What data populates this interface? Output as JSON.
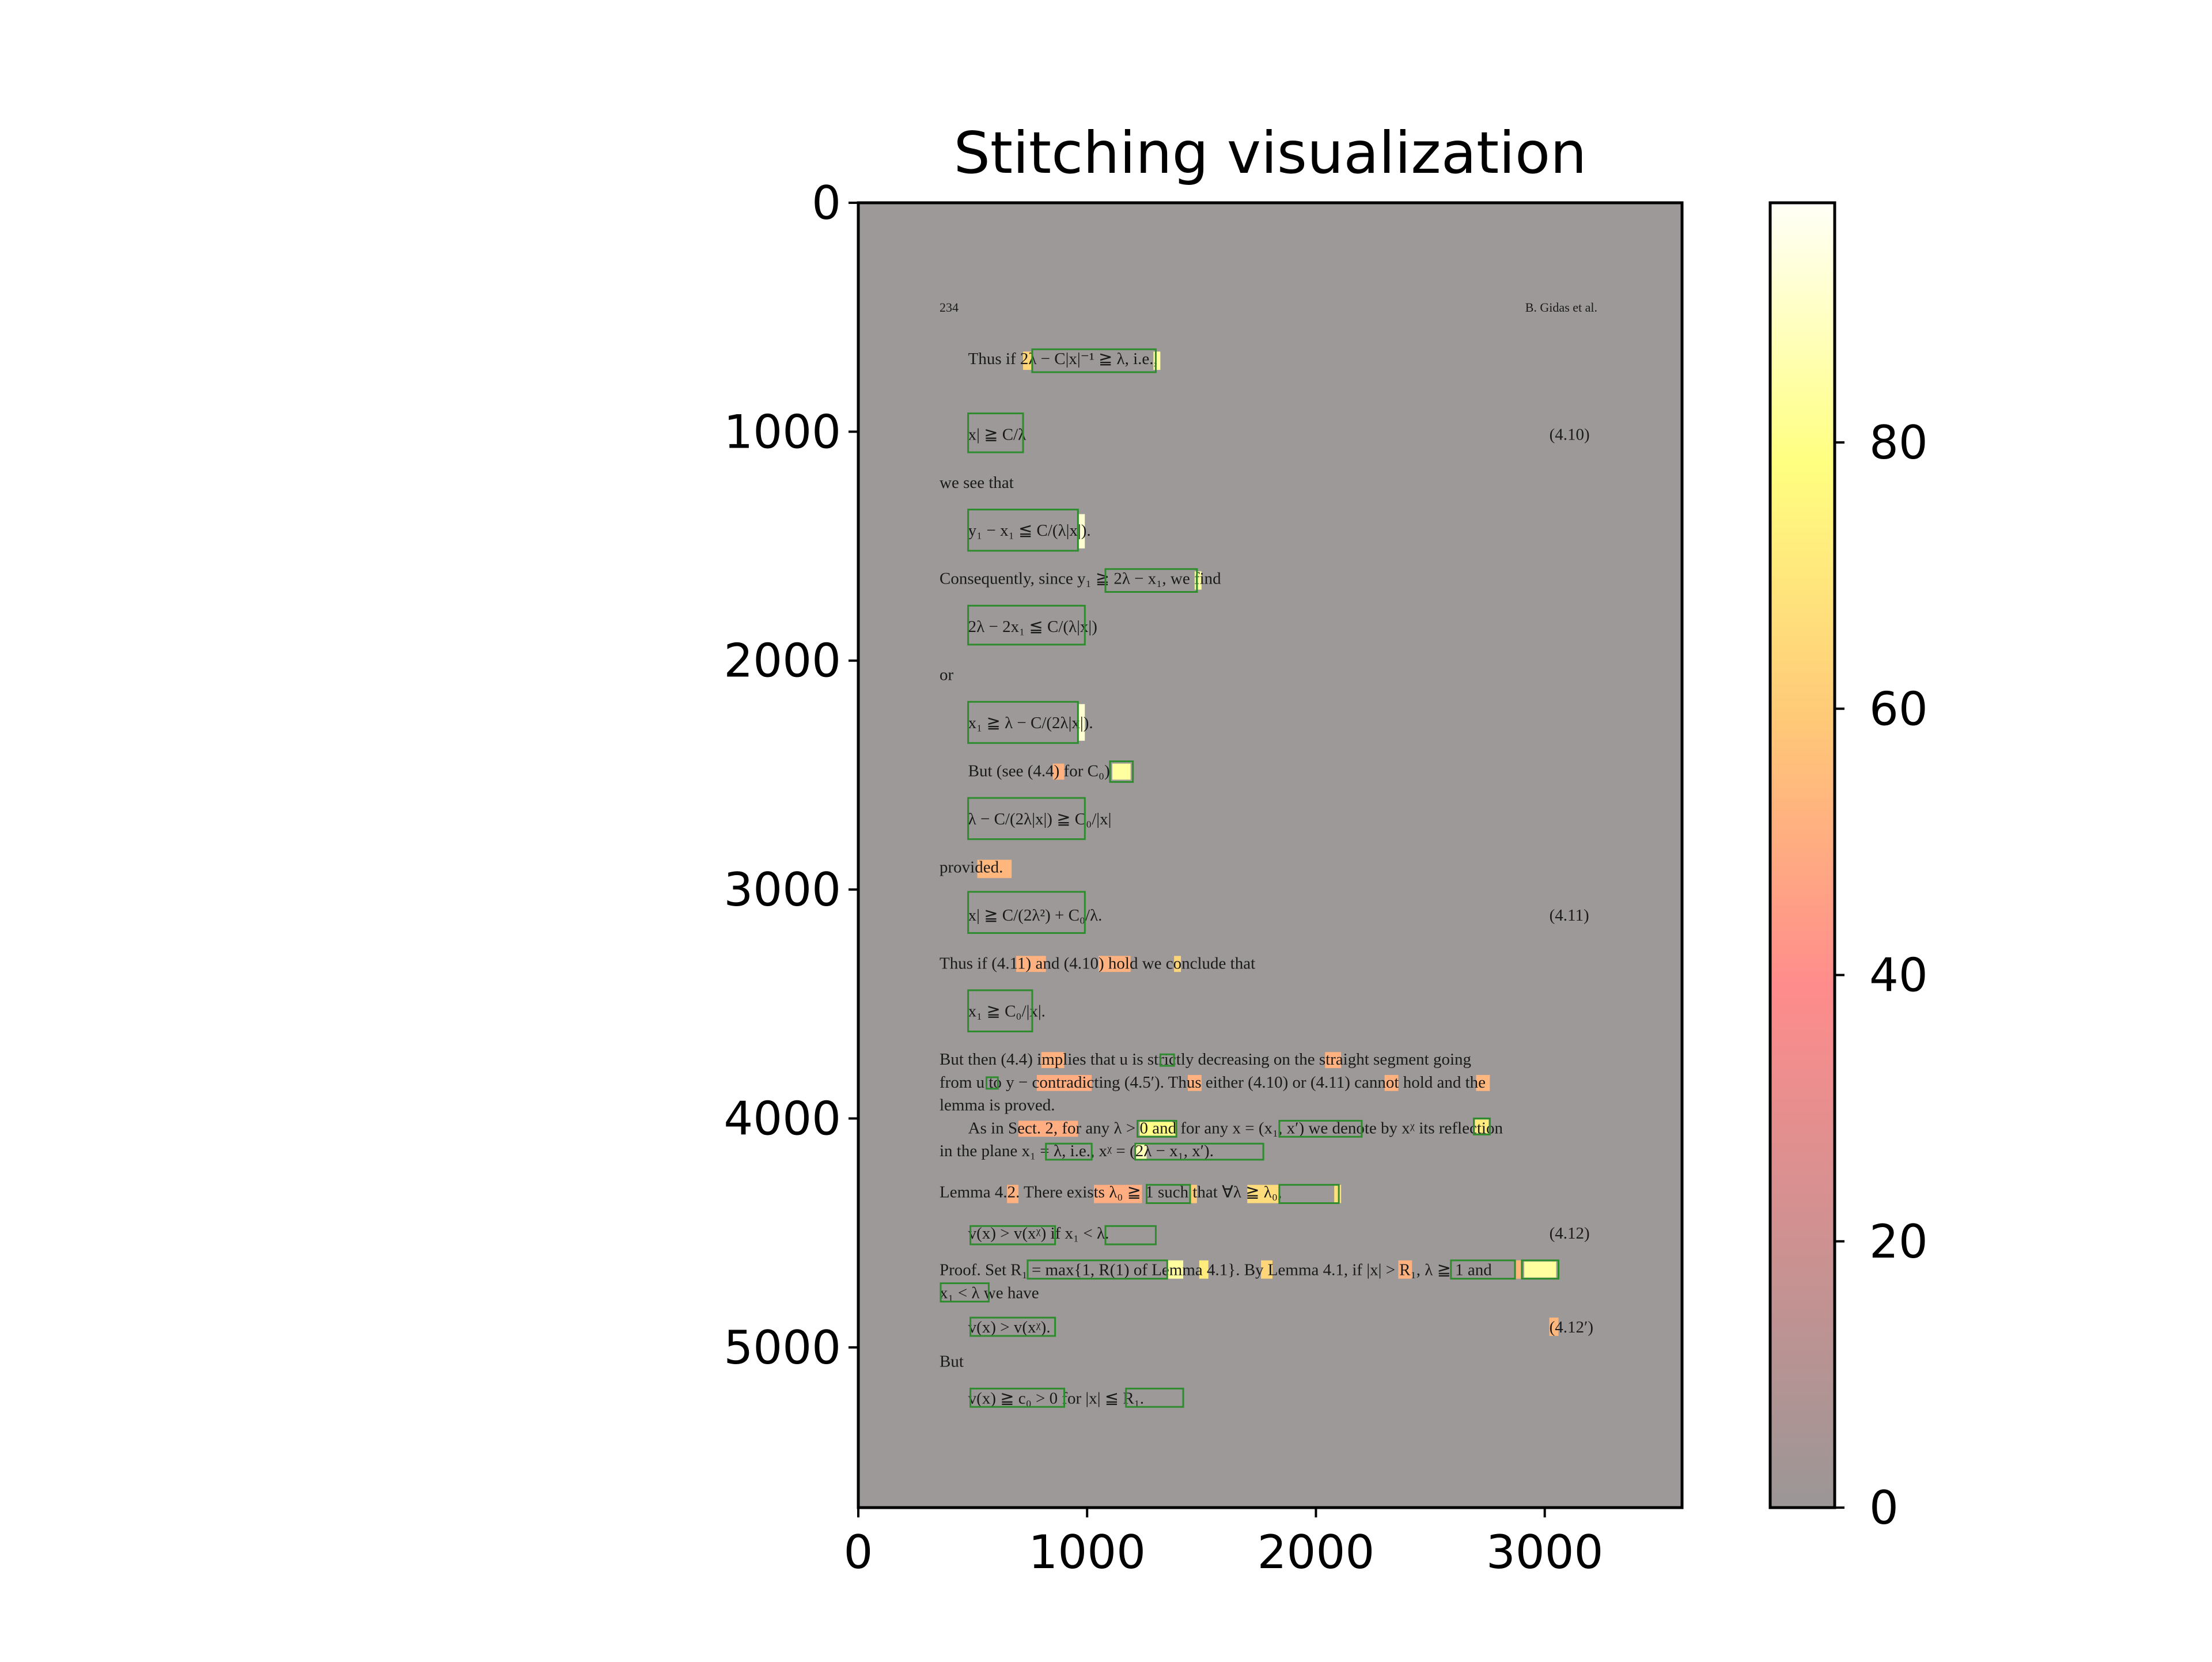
{
  "chart_data": {
    "type": "heatmap",
    "title": "Stitching visualization",
    "xlabel": "",
    "ylabel": "",
    "xlim": [
      0,
      3600
    ],
    "ylim": [
      5700,
      0
    ],
    "x_ticks": [
      0,
      1000,
      2000,
      3000
    ],
    "y_ticks": [
      0,
      1000,
      2000,
      3000,
      4000,
      5000
    ],
    "colorbar": {
      "range": [
        0,
        98
      ],
      "ticks": [
        0,
        20,
        40,
        60,
        80
      ],
      "colormap": [
        "#9b9696",
        "#ff8c8c",
        "#ffc878",
        "#ffff80",
        "#fffff8"
      ]
    },
    "background_color": "#9c9998",
    "box_color": "#2e8b2e",
    "document": {
      "header_left": "234",
      "header_right": "B. Gidas et al.",
      "lines": [
        {
          "text": "Thus if 2λ − C|x|⁻¹ ≧ λ, i.e.,",
          "y": 680,
          "x": 480
        },
        {
          "text": "x| ≧ C/λ",
          "y": 1010,
          "x": 480
        },
        {
          "text": "(4.10)",
          "y": 1010,
          "x": 3020
        },
        {
          "text": "we see that",
          "y": 1220,
          "x": 355
        },
        {
          "text": "y₁ − x₁ ≦ C/(λ|x|).",
          "y": 1430,
          "x": 480
        },
        {
          "text": "Consequently, since y₁ ≧ 2λ − x₁, we find",
          "y": 1640,
          "x": 355
        },
        {
          "text": "2λ − 2x₁ ≦ C/(λ|x|)",
          "y": 1850,
          "x": 480
        },
        {
          "text": "or",
          "y": 2060,
          "x": 355
        },
        {
          "text": "x₁ ≧ λ − C/(2λ|x|).",
          "y": 2270,
          "x": 480
        },
        {
          "text": "But (see (4.4) for C₀)",
          "y": 2480,
          "x": 480
        },
        {
          "text": "λ − C/(2λ|x|) ≧ C₀/|x|",
          "y": 2690,
          "x": 480
        },
        {
          "text": "provided.",
          "y": 2900,
          "x": 355
        },
        {
          "text": "x| ≧ C/(2λ²) + C₀/λ.",
          "y": 3110,
          "x": 480
        },
        {
          "text": "(4.11)",
          "y": 3110,
          "x": 3020
        },
        {
          "text": "Thus if (4.11) and (4.10) hold we conclude that",
          "y": 3320,
          "x": 355
        },
        {
          "text": "x₁ ≧ C₀/|x|.",
          "y": 3530,
          "x": 480
        },
        {
          "text": "But then (4.4) implies that u is strictly decreasing on the straight segment going",
          "y": 3740,
          "x": 355
        },
        {
          "text": "from u to y − contradicting (4.5′). Thus either (4.10) or (4.11) cannot hold and the",
          "y": 3840,
          "x": 355
        },
        {
          "text": "lemma is proved.",
          "y": 3940,
          "x": 355
        },
        {
          "text": "As in Sect. 2, for any λ > 0 and for any x = (x₁, x′) we denote by xᵡ its reflection",
          "y": 4040,
          "x": 480
        },
        {
          "text": "in the plane x₁ = λ, i.e., xᵡ = (2λ − x₁, x′).",
          "y": 4140,
          "x": 355
        },
        {
          "text": "Lemma 4.2. There exists λ₀ ≧ 1 such that ∀λ ≧ λ₀,",
          "y": 4320,
          "x": 355
        },
        {
          "text": "v(x) > v(xᵡ)    if    x₁ < λ.",
          "y": 4500,
          "x": 480
        },
        {
          "text": "(4.12)",
          "y": 4500,
          "x": 3020
        },
        {
          "text": "Proof. Set R₁ = max{1, R(1) of Lemma 4.1}. By Lemma 4.1, if |x| > R₁, λ ≧ 1 and",
          "y": 4660,
          "x": 355
        },
        {
          "text": "x₁ < λ we have",
          "y": 4760,
          "x": 355
        },
        {
          "text": "v(x) > v(xᵡ).",
          "y": 4910,
          "x": 480
        },
        {
          "text": "(4.12′)",
          "y": 4910,
          "x": 3020
        },
        {
          "text": "But",
          "y": 5060,
          "x": 355
        },
        {
          "text": "v(x) ≧ c₀ > 0    for    |x| ≦ R₁.",
          "y": 5220,
          "x": 480
        }
      ],
      "boxes": [
        {
          "x": [
            760,
            1300
          ],
          "y": [
            640,
            740
          ]
        },
        {
          "x": [
            480,
            720
          ],
          "y": [
            920,
            1090
          ]
        },
        {
          "x": [
            480,
            960
          ],
          "y": [
            1340,
            1520
          ]
        },
        {
          "x": [
            1080,
            1480
          ],
          "y": [
            1600,
            1700
          ]
        },
        {
          "x": [
            480,
            990
          ],
          "y": [
            1760,
            1930
          ]
        },
        {
          "x": [
            480,
            960
          ],
          "y": [
            2180,
            2360
          ]
        },
        {
          "x": [
            1100,
            1200
          ],
          "y": [
            2440,
            2530
          ]
        },
        {
          "x": [
            480,
            990
          ],
          "y": [
            2600,
            2780
          ]
        },
        {
          "x": [
            480,
            990
          ],
          "y": [
            3010,
            3190
          ]
        },
        {
          "x": [
            480,
            760
          ],
          "y": [
            3440,
            3620
          ]
        },
        {
          "x": [
            1320,
            1380
          ],
          "y": [
            3720,
            3770
          ]
        },
        {
          "x": [
            560,
            610
          ],
          "y": [
            3820,
            3870
          ]
        },
        {
          "x": [
            1220,
            1390
          ],
          "y": [
            4010,
            4080
          ]
        },
        {
          "x": [
            1840,
            2200
          ],
          "y": [
            4010,
            4080
          ]
        },
        {
          "x": [
            2690,
            2760
          ],
          "y": [
            4000,
            4070
          ]
        },
        {
          "x": [
            820,
            1020
          ],
          "y": [
            4110,
            4180
          ]
        },
        {
          "x": [
            1210,
            1770
          ],
          "y": [
            4110,
            4180
          ]
        },
        {
          "x": [
            1260,
            1450
          ],
          "y": [
            4290,
            4370
          ]
        },
        {
          "x": [
            1840,
            2100
          ],
          "y": [
            4290,
            4370
          ]
        },
        {
          "x": [
            490,
            860
          ],
          "y": [
            4470,
            4550
          ]
        },
        {
          "x": [
            1080,
            1300
          ],
          "y": [
            4470,
            4550
          ]
        },
        {
          "x": [
            740,
            1350
          ],
          "y": [
            4620,
            4700
          ]
        },
        {
          "x": [
            2590,
            2870
          ],
          "y": [
            4620,
            4700
          ]
        },
        {
          "x": [
            2900,
            3060
          ],
          "y": [
            4620,
            4700
          ]
        },
        {
          "x": [
            360,
            570
          ],
          "y": [
            4720,
            4800
          ]
        },
        {
          "x": [
            490,
            860
          ],
          "y": [
            4870,
            4950
          ]
        },
        {
          "x": [
            490,
            900
          ],
          "y": [
            5180,
            5260
          ]
        },
        {
          "x": [
            1170,
            1420
          ],
          "y": [
            5180,
            5260
          ]
        }
      ],
      "heat": [
        {
          "x": [
            720,
            760
          ],
          "y": [
            650,
            730
          ],
          "value": 55
        },
        {
          "x": [
            1290,
            1320
          ],
          "y": [
            650,
            730
          ],
          "value": 80
        },
        {
          "x": [
            960,
            990
          ],
          "y": [
            1360,
            1510
          ],
          "value": 90
        },
        {
          "x": [
            1470,
            1500
          ],
          "y": [
            1610,
            1690
          ],
          "value": 80
        },
        {
          "x": [
            960,
            990
          ],
          "y": [
            2190,
            2350
          ],
          "value": 90
        },
        {
          "x": [
            850,
            900
          ],
          "y": [
            2450,
            2520
          ],
          "value": 40
        },
        {
          "x": [
            1110,
            1190
          ],
          "y": [
            2450,
            2520
          ],
          "value": 80
        },
        {
          "x": [
            520,
            670
          ],
          "y": [
            2870,
            2950
          ],
          "value": 42
        },
        {
          "x": [
            690,
            820
          ],
          "y": [
            3290,
            3360
          ],
          "value": 40
        },
        {
          "x": [
            1050,
            1190
          ],
          "y": [
            3290,
            3360
          ],
          "value": 40
        },
        {
          "x": [
            1380,
            1410
          ],
          "y": [
            3290,
            3360
          ],
          "value": 55
        },
        {
          "x": [
            800,
            900
          ],
          "y": [
            3710,
            3780
          ],
          "value": 40
        },
        {
          "x": [
            2040,
            2110
          ],
          "y": [
            3710,
            3780
          ],
          "value": 40
        },
        {
          "x": [
            780,
            1020
          ],
          "y": [
            3810,
            3880
          ],
          "value": 38
        },
        {
          "x": [
            1440,
            1500
          ],
          "y": [
            3810,
            3880
          ],
          "value": 40
        },
        {
          "x": [
            2300,
            2360
          ],
          "y": [
            3810,
            3880
          ],
          "value": 40
        },
        {
          "x": [
            2700,
            2760
          ],
          "y": [
            3810,
            3880
          ],
          "value": 42
        },
        {
          "x": [
            700,
            960
          ],
          "y": [
            4010,
            4080
          ],
          "value": 38
        },
        {
          "x": [
            1230,
            1390
          ],
          "y": [
            4015,
            4075
          ],
          "value": 75
        },
        {
          "x": [
            2695,
            2755
          ],
          "y": [
            4005,
            4065
          ],
          "value": 65
        },
        {
          "x": [
            1210,
            1260
          ],
          "y": [
            4110,
            4180
          ],
          "value": 85
        },
        {
          "x": [
            650,
            700
          ],
          "y": [
            4290,
            4370
          ],
          "value": 40
        },
        {
          "x": [
            1030,
            1240
          ],
          "y": [
            4290,
            4370
          ],
          "value": 38
        },
        {
          "x": [
            1450,
            1480
          ],
          "y": [
            4290,
            4370
          ],
          "value": 50
        },
        {
          "x": [
            1700,
            1840
          ],
          "y": [
            4290,
            4370
          ],
          "value": 58
        },
        {
          "x": [
            2080,
            2110
          ],
          "y": [
            4290,
            4370
          ],
          "value": 60
        },
        {
          "x": [
            1350,
            1420
          ],
          "y": [
            4620,
            4700
          ],
          "value": 80
        },
        {
          "x": [
            1490,
            1530
          ],
          "y": [
            4620,
            4700
          ],
          "value": 65
        },
        {
          "x": [
            1760,
            1810
          ],
          "y": [
            4620,
            4700
          ],
          "value": 55
        },
        {
          "x": [
            2360,
            2420
          ],
          "y": [
            4620,
            4700
          ],
          "value": 40
        },
        {
          "x": [
            2870,
            2900
          ],
          "y": [
            4620,
            4700
          ],
          "value": 42
        },
        {
          "x": [
            2910,
            3050
          ],
          "y": [
            4625,
            4695
          ],
          "value": 80
        },
        {
          "x": [
            3020,
            3060
          ],
          "y": [
            4870,
            4950
          ],
          "value": 42
        }
      ]
    }
  }
}
